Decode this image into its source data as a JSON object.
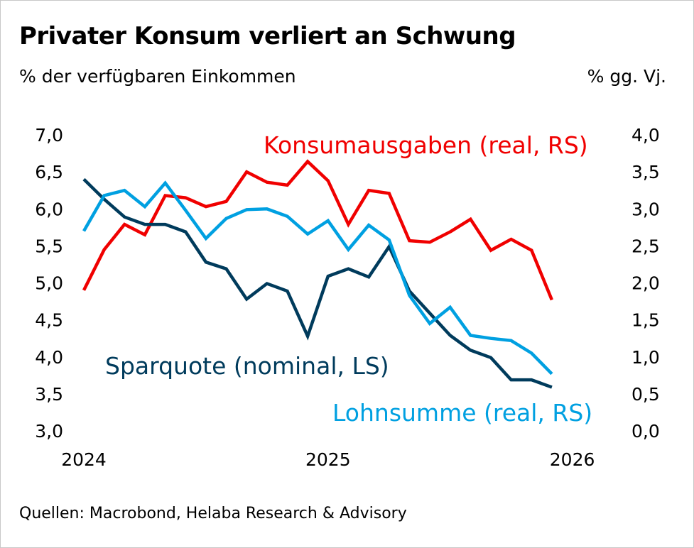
{
  "chart_data": {
    "type": "line",
    "title": "Privater Konsum verliert an Schwung",
    "ylabel_left": "% der verfügbaren Einkommen",
    "ylabel_right": "% gg. Vj.",
    "source": "Quellen: Macrobond, Helaba Research & Advisory",
    "x": [
      "2024-01",
      "2024-02",
      "2024-03",
      "2024-04",
      "2024-05",
      "2024-06",
      "2024-07",
      "2024-08",
      "2024-09",
      "2024-10",
      "2024-11",
      "2024-12",
      "2025-01",
      "2025-02",
      "2025-03",
      "2025-04",
      "2025-05",
      "2025-06",
      "2025-07",
      "2025-08",
      "2025-09",
      "2025-10",
      "2025-11",
      "2025-12"
    ],
    "x_ticks": [
      "2024",
      "2025",
      "2026"
    ],
    "ylim_left": [
      3.0,
      7.0
    ],
    "ylim_right": [
      0.0,
      4.0
    ],
    "y_ticks_left": [
      "3,0",
      "3,5",
      "4,0",
      "4,5",
      "5,0",
      "5,5",
      "6,0",
      "6,5",
      "7,0"
    ],
    "y_ticks_right": [
      "0,0",
      "0,5",
      "1,0",
      "1,5",
      "2,0",
      "2,5",
      "3,0",
      "3,5",
      "4,0"
    ],
    "grid": false,
    "series": [
      {
        "name": "Konsumausgaben (real, RS)",
        "axis": "right",
        "color": "#f00000",
        "values": [
          1.9,
          2.45,
          2.79,
          2.65,
          3.18,
          3.15,
          3.03,
          3.1,
          3.5,
          3.36,
          3.32,
          3.64,
          3.38,
          2.79,
          3.25,
          3.21,
          2.57,
          2.55,
          2.69,
          2.86,
          2.44,
          2.59,
          2.44,
          1.77
        ]
      },
      {
        "name": "Sparquote (nominal, LS)",
        "axis": "left",
        "color": "#003b5c",
        "values": [
          6.4,
          6.13,
          5.89,
          5.79,
          5.79,
          5.69,
          5.28,
          5.19,
          4.78,
          4.99,
          4.89,
          4.28,
          5.09,
          5.19,
          5.08,
          5.49,
          4.89,
          4.59,
          4.29,
          4.09,
          3.99,
          3.69,
          3.69,
          3.59
        ]
      },
      {
        "name": "Lohnsumme (real, RS)",
        "axis": "right",
        "color": "#00a0e1",
        "values": [
          2.7,
          3.18,
          3.25,
          3.03,
          3.35,
          2.98,
          2.6,
          2.87,
          2.99,
          3.0,
          2.9,
          2.66,
          2.84,
          2.45,
          2.78,
          2.58,
          1.83,
          1.45,
          1.67,
          1.29,
          1.25,
          1.22,
          1.05,
          0.77
        ]
      }
    ]
  }
}
